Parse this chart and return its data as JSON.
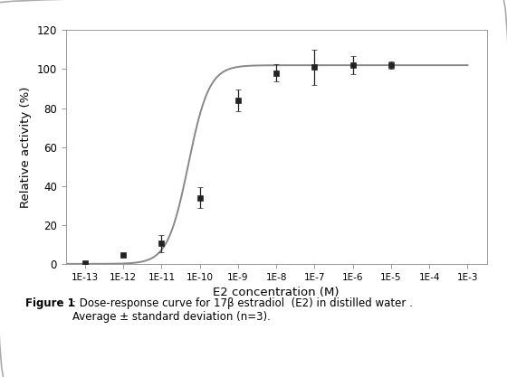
{
  "xlabel": "E2 concentration (M)",
  "ylabel": "Relative activity (%)",
  "caption_bold": "Figure 1",
  "caption_text": ": Dose-response curve for 17β estradiol  (E2) in distilled water .\nAverage ± standard deviation (n=3).",
  "x_data": [
    1e-13,
    1e-12,
    1e-11,
    1e-10,
    1e-09,
    1e-08,
    1e-07,
    1e-06,
    1e-05
  ],
  "y_data": [
    0.5,
    4.5,
    10.5,
    34.0,
    84.0,
    98.0,
    101.0,
    102.0,
    102.0
  ],
  "y_err": [
    0.4,
    0.4,
    4.5,
    5.5,
    5.5,
    4.5,
    9.0,
    4.5,
    1.8
  ],
  "ylim": [
    0,
    120
  ],
  "yticks": [
    0,
    20,
    40,
    60,
    80,
    100,
    120
  ],
  "xtick_exponents": [
    -13,
    -12,
    -11,
    -10,
    -9,
    -8,
    -7,
    -6,
    -5,
    -4,
    -3
  ],
  "marker_color": "#222222",
  "line_color": "#888888",
  "marker_size": 4,
  "line_width": 1.4,
  "background_color": "#ffffff",
  "ec50_log": -10.3,
  "hill": 1.6,
  "ymax_curve": 102.0
}
